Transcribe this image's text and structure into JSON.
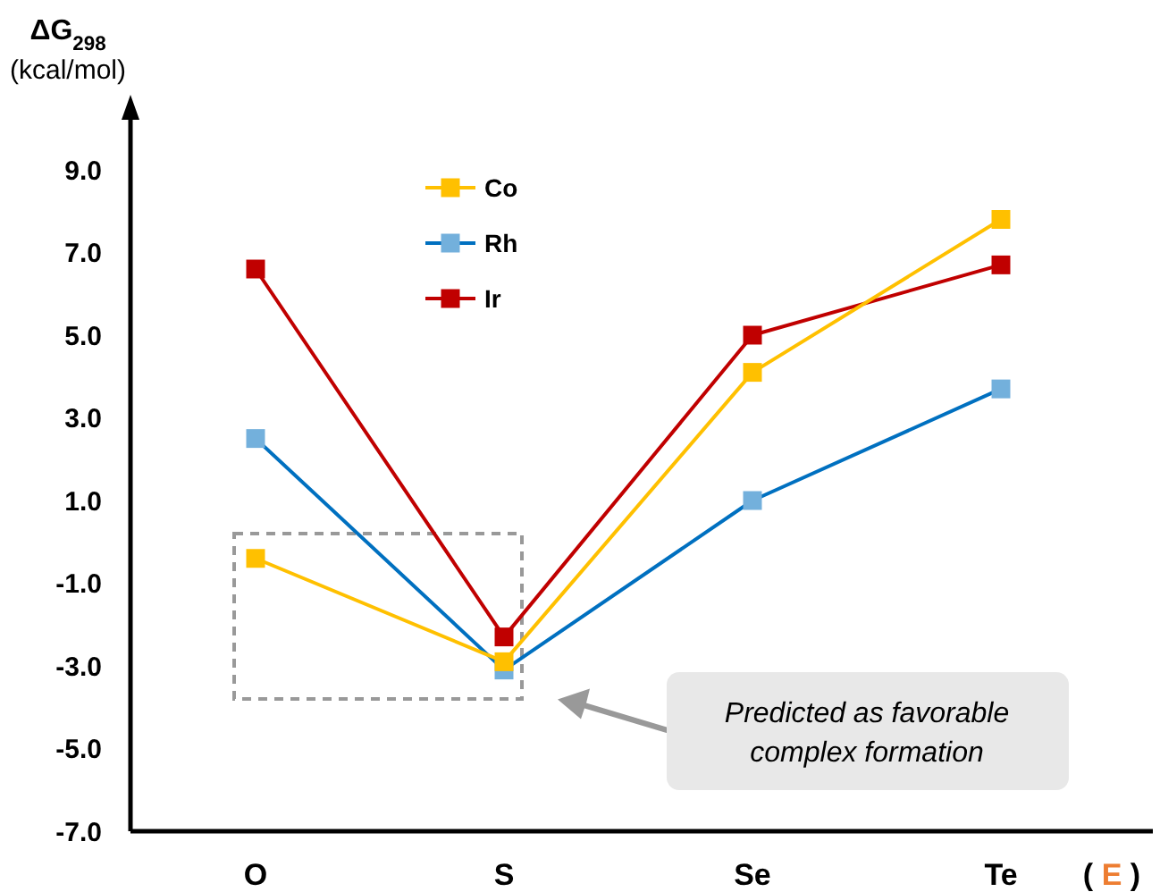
{
  "chart_data": {
    "type": "line",
    "ylabel": "ΔG$_{298}$ (kcal/mol)",
    "xlabel": "( E )",
    "categories": [
      "O",
      "S",
      "Se",
      "Te"
    ],
    "series": [
      {
        "name": "Co",
        "color": "#ffc000",
        "values": [
          -0.4,
          -2.9,
          4.1,
          7.8
        ]
      },
      {
        "name": "Rh",
        "color": "#0070c0",
        "values": [
          2.5,
          -3.1,
          1.0,
          3.7
        ]
      },
      {
        "name": "Ir",
        "color": "#c00000",
        "values": [
          6.6,
          -2.3,
          5.0,
          6.7
        ]
      }
    ],
    "ylim": [
      -7,
      9
    ],
    "yticks": [
      {
        "value": 9,
        "label": "9.0"
      },
      {
        "value": 7,
        "label": "7.0"
      },
      {
        "value": 5,
        "label": "5.0"
      },
      {
        "value": 3,
        "label": "3.0"
      },
      {
        "value": 1,
        "label": "1.0"
      },
      {
        "value": -1,
        "label": "-1.0"
      },
      {
        "value": -3,
        "label": "-3.0"
      },
      {
        "value": -5,
        "label": "-5.0"
      },
      {
        "value": -7,
        "label": "-7.0"
      }
    ],
    "marker": "square",
    "grid": false,
    "legend": "top left",
    "annotations": [
      "Predicted as favorable complex formation"
    ]
  }
}
